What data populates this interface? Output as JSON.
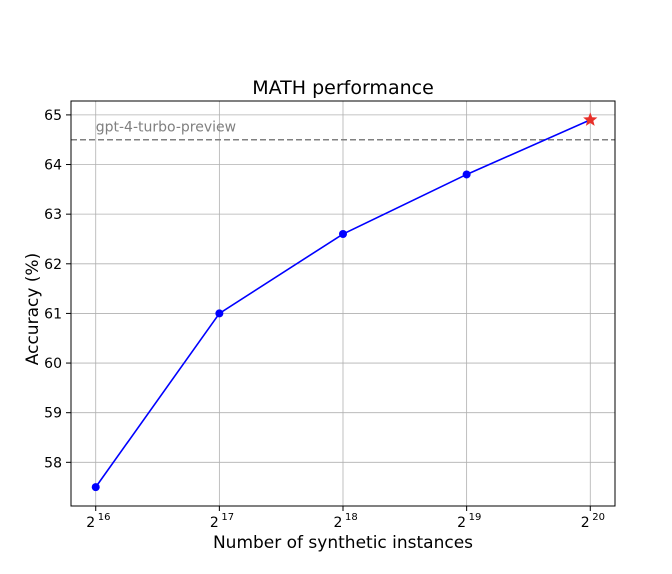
{
  "chart_data": {
    "type": "line",
    "title": "MATH performance",
    "xlabel": "Number of synthetic instances",
    "ylabel": "Accuracy (%)",
    "x_scale": "log2",
    "x": [
      65536,
      131072,
      262144,
      524288,
      1048576
    ],
    "x_tick_labels": [
      {
        "base": "2",
        "exp": "16"
      },
      {
        "base": "2",
        "exp": "17"
      },
      {
        "base": "2",
        "exp": "18"
      },
      {
        "base": "2",
        "exp": "19"
      },
      {
        "base": "2",
        "exp": "20"
      }
    ],
    "series": [
      {
        "values": [
          57.5,
          61.0,
          62.6,
          63.8,
          64.9
        ],
        "color": "#0000ff",
        "marker": "circle",
        "last_marker": "star",
        "last_marker_color": "#e8302a"
      }
    ],
    "reference_line": {
      "label": "gpt-4-turbo-preview",
      "value": 64.5,
      "color": "#808080",
      "style": "dashed"
    },
    "y_ticks": [
      58,
      59,
      60,
      61,
      62,
      63,
      64,
      65
    ],
    "ylim": [
      57.12,
      65.28
    ],
    "grid": true
  }
}
